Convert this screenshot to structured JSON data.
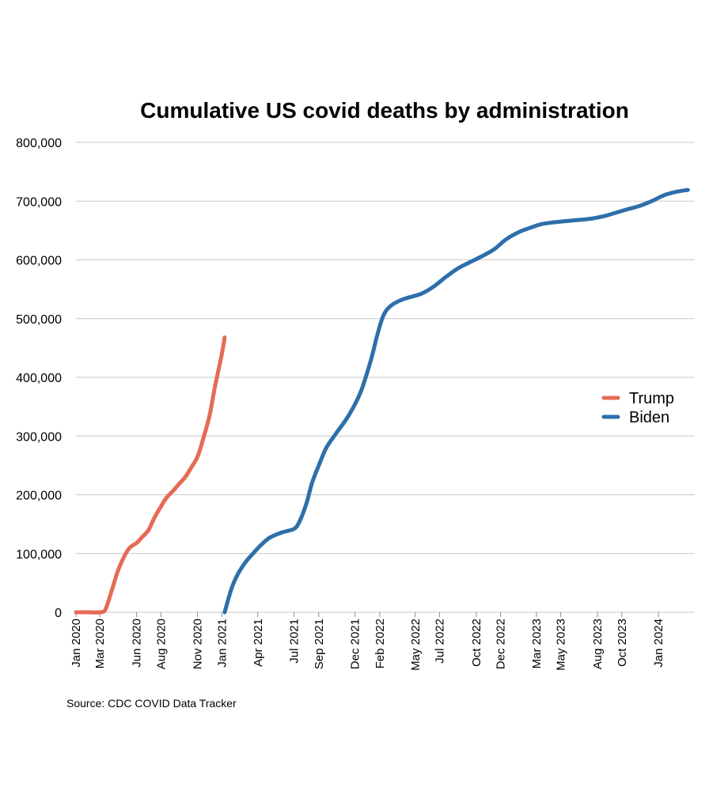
{
  "chart_data": {
    "type": "line",
    "title": "Cumulative US covid deaths by administration",
    "xlabel": "",
    "ylabel": "",
    "ylim": [
      0,
      800000
    ],
    "y_ticks": [
      0,
      100000,
      200000,
      300000,
      400000,
      500000,
      600000,
      700000,
      800000
    ],
    "y_tick_labels": [
      "0",
      "100,000",
      "200,000",
      "300,000",
      "400,000",
      "500,000",
      "600,000",
      "700,000",
      "800,000"
    ],
    "xlim": [
      "2020-01-01",
      "2024-04-01"
    ],
    "x_tick_labels": [
      {
        "date": "2020-01-01",
        "label": "Jan 2020"
      },
      {
        "date": "2020-03-01",
        "label": "Mar 2020"
      },
      {
        "date": "2020-06-01",
        "label": "Jun 2020"
      },
      {
        "date": "2020-08-01",
        "label": "Aug 2020"
      },
      {
        "date": "2020-11-01",
        "label": "Nov 2020"
      },
      {
        "date": "2021-01-01",
        "label": "Jan 2021"
      },
      {
        "date": "2021-04-01",
        "label": "Apr 2021"
      },
      {
        "date": "2021-07-01",
        "label": "Jul 2021"
      },
      {
        "date": "2021-09-01",
        "label": "Sep 2021"
      },
      {
        "date": "2021-12-01",
        "label": "Dec 2021"
      },
      {
        "date": "2022-02-01",
        "label": "Feb 2022"
      },
      {
        "date": "2022-05-01",
        "label": "May 2022"
      },
      {
        "date": "2022-07-01",
        "label": "Jul 2022"
      },
      {
        "date": "2022-10-01",
        "label": "Oct 2022"
      },
      {
        "date": "2022-12-01",
        "label": "Dec 2022"
      },
      {
        "date": "2023-03-01",
        "label": "Mar 2023"
      },
      {
        "date": "2023-05-01",
        "label": "May 2023"
      },
      {
        "date": "2023-08-01",
        "label": "Aug 2023"
      },
      {
        "date": "2023-10-01",
        "label": "Oct 2023"
      },
      {
        "date": "2024-01-01",
        "label": "Jan 2024"
      }
    ],
    "grid": true,
    "legend": "right",
    "series": [
      {
        "name": "Trump",
        "color": "#e56b55",
        "points": [
          [
            "2020-01-01",
            0
          ],
          [
            "2020-02-01",
            0
          ],
          [
            "2020-03-01",
            0
          ],
          [
            "2020-03-15",
            5000
          ],
          [
            "2020-04-01",
            40000
          ],
          [
            "2020-04-15",
            70000
          ],
          [
            "2020-05-01",
            95000
          ],
          [
            "2020-05-15",
            110000
          ],
          [
            "2020-06-01",
            118000
          ],
          [
            "2020-06-15",
            128000
          ],
          [
            "2020-07-01",
            140000
          ],
          [
            "2020-07-15",
            160000
          ],
          [
            "2020-08-01",
            180000
          ],
          [
            "2020-08-15",
            195000
          ],
          [
            "2020-09-01",
            207000
          ],
          [
            "2020-09-15",
            218000
          ],
          [
            "2020-10-01",
            230000
          ],
          [
            "2020-10-15",
            245000
          ],
          [
            "2020-11-01",
            265000
          ],
          [
            "2020-11-15",
            295000
          ],
          [
            "2020-12-01",
            335000
          ],
          [
            "2020-12-15",
            385000
          ],
          [
            "2021-01-01",
            440000
          ],
          [
            "2021-01-08",
            468000
          ]
        ]
      },
      {
        "name": "Biden",
        "color": "#2d6faa",
        "points": [
          [
            "2021-01-08",
            0
          ],
          [
            "2021-01-25",
            40000
          ],
          [
            "2021-02-10",
            65000
          ],
          [
            "2021-03-01",
            85000
          ],
          [
            "2021-03-20",
            100000
          ],
          [
            "2021-04-10",
            115000
          ],
          [
            "2021-05-01",
            127000
          ],
          [
            "2021-06-01",
            136000
          ],
          [
            "2021-07-01",
            142000
          ],
          [
            "2021-07-15",
            155000
          ],
          [
            "2021-08-01",
            185000
          ],
          [
            "2021-08-15",
            220000
          ],
          [
            "2021-09-01",
            250000
          ],
          [
            "2021-09-20",
            280000
          ],
          [
            "2021-10-15",
            305000
          ],
          [
            "2021-11-15",
            335000
          ],
          [
            "2021-12-15",
            375000
          ],
          [
            "2022-01-10",
            430000
          ],
          [
            "2022-01-25",
            470000
          ],
          [
            "2022-02-10",
            505000
          ],
          [
            "2022-03-01",
            522000
          ],
          [
            "2022-04-01",
            533000
          ],
          [
            "2022-05-15",
            542000
          ],
          [
            "2022-06-15",
            554000
          ],
          [
            "2022-07-15",
            570000
          ],
          [
            "2022-08-15",
            585000
          ],
          [
            "2022-09-15",
            596000
          ],
          [
            "2022-10-15",
            606000
          ],
          [
            "2022-11-15",
            618000
          ],
          [
            "2022-12-15",
            635000
          ],
          [
            "2023-01-15",
            647000
          ],
          [
            "2023-02-15",
            655000
          ],
          [
            "2023-03-15",
            661000
          ],
          [
            "2023-04-15",
            664000
          ],
          [
            "2023-05-15",
            666000
          ],
          [
            "2023-06-15",
            668000
          ],
          [
            "2023-07-15",
            670000
          ],
          [
            "2023-08-15",
            674000
          ],
          [
            "2023-09-15",
            680000
          ],
          [
            "2023-10-15",
            686000
          ],
          [
            "2023-11-15",
            692000
          ],
          [
            "2023-12-15",
            700000
          ],
          [
            "2024-01-15",
            710000
          ],
          [
            "2024-02-15",
            716000
          ],
          [
            "2024-03-15",
            719000
          ]
        ]
      }
    ],
    "source": "Source: CDC COVID Data Tracker"
  }
}
